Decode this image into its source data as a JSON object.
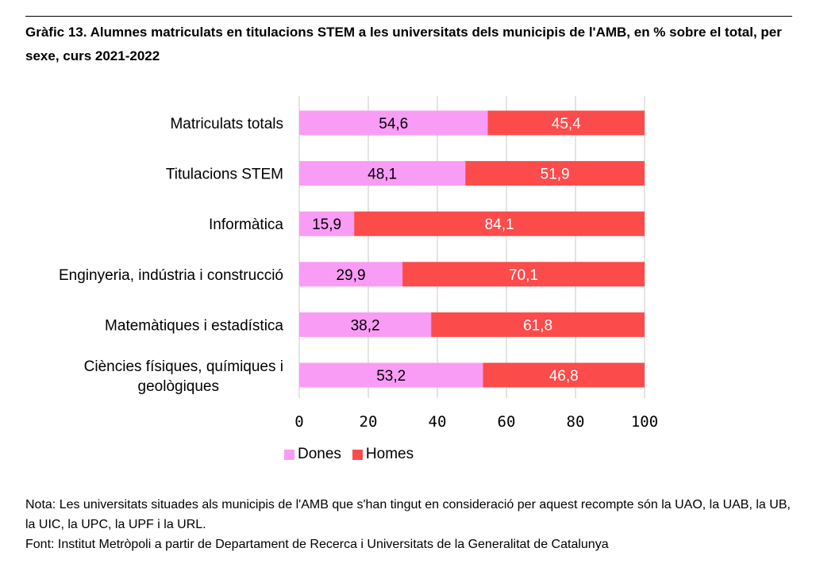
{
  "title": "Gràfic 13. Alumnes matriculats en titulacions STEM a les universitats dels municipis de l'AMB, en % sobre el total, per sexe, curs 2021-2022",
  "note": "Nota: Les universitats situades als municipis de l'AMB que s'han tingut en consideració per aquest recompte són la UAO, la UAB, la UB, la UIC, la UPC, la UPF i la URL.",
  "source": "Font: Institut Metròpoli a partir de Departament de Recerca i Universitats de la Generalitat de Catalunya",
  "colors": {
    "dones": "#f99cf5",
    "homes": "#fc4b4b",
    "grid": "#c8c8c8"
  },
  "chart_data": {
    "type": "bar",
    "orientation": "horizontal",
    "stacked": true,
    "categories": [
      "Matriculats totals",
      "Titulacions STEM",
      "Informàtica",
      "Enginyeria, indústria i construcció",
      "Matemàtiques i estadística",
      "Ciències físiques, químiques i geològiques"
    ],
    "series": [
      {
        "name": "Dones",
        "values": [
          54.6,
          48.1,
          15.9,
          29.9,
          38.2,
          53.2
        ],
        "labels": [
          "54,6",
          "48,1",
          "15,9",
          "29,9",
          "38,2",
          "53,2"
        ]
      },
      {
        "name": "Homes",
        "values": [
          45.4,
          51.9,
          84.1,
          70.1,
          61.8,
          46.8
        ],
        "labels": [
          "45,4",
          "51,9",
          "84,1",
          "70,1",
          "61,8",
          "46,8"
        ]
      }
    ],
    "xlim": [
      0,
      100
    ],
    "xticks": [
      0,
      20,
      40,
      60,
      80,
      100
    ],
    "grid": true,
    "legend_position": "bottom"
  }
}
